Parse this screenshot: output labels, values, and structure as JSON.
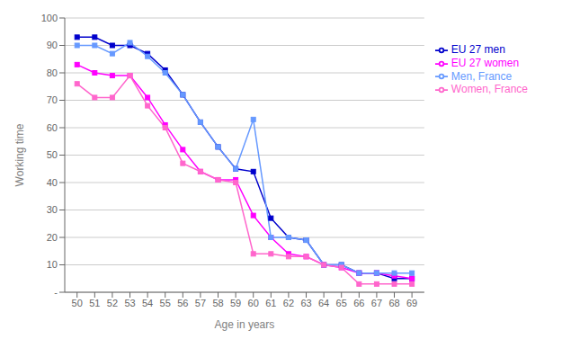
{
  "chart_data": {
    "type": "line",
    "x": [
      50,
      51,
      52,
      53,
      54,
      55,
      56,
      57,
      58,
      59,
      60,
      61,
      62,
      63,
      64,
      65,
      66,
      67,
      68,
      69
    ],
    "series": [
      {
        "name": "EU 27 men",
        "color": "#0000CC",
        "values": [
          93,
          93,
          90,
          90,
          87,
          81,
          72,
          62,
          53,
          45,
          44,
          27,
          20,
          19,
          10,
          10,
          7,
          7,
          5,
          5
        ]
      },
      {
        "name": "EU 27 women",
        "color": "#FF00FF",
        "values": [
          83,
          80,
          79,
          79,
          71,
          61,
          52,
          44,
          41,
          41,
          28,
          20,
          14,
          13,
          10,
          9,
          7,
          7,
          6,
          5
        ]
      },
      {
        "name": "Men, France",
        "color": "#6699FF",
        "values": [
          90,
          90,
          87,
          91,
          86,
          80,
          72,
          62,
          53,
          45,
          63,
          20,
          20,
          19,
          10,
          10,
          7,
          7,
          7,
          7
        ]
      },
      {
        "name": "Women, France",
        "color": "#FF66CC",
        "values": [
          76,
          71,
          71,
          79,
          68,
          60,
          47,
          44,
          41,
          40,
          14,
          14,
          13,
          13,
          10,
          9,
          3,
          3,
          3,
          3
        ]
      }
    ],
    "x_label": "Age in years",
    "y_label": "Working time",
    "xlim": [
      49.3,
      69.7
    ],
    "xticks": [
      50,
      51,
      52,
      53,
      54,
      55,
      56,
      57,
      58,
      59,
      60,
      61,
      62,
      63,
      64,
      65,
      66,
      67,
      68,
      69
    ],
    "ylim": [
      0,
      100
    ],
    "yticks": [
      {
        "value": 0,
        "label": "-"
      },
      10,
      20,
      30,
      40,
      50,
      60,
      70,
      80,
      90,
      100
    ],
    "grid": true,
    "legend": "right",
    "marker": "square",
    "line_style": "solid"
  }
}
